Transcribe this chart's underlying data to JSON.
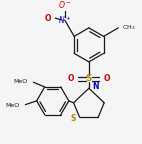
{
  "bg_color": "#f5f5f5",
  "bond_color": "#1a1a1a",
  "text_color": "#1a1a1a",
  "nitrogen_color": "#0000cc",
  "oxygen_color": "#cc0000",
  "sulfur_color": "#b8860b",
  "figsize": [
    1.42,
    1.44
  ],
  "dpi": 100,
  "xlim": [
    0,
    142
  ],
  "ylim": [
    0,
    144
  ]
}
